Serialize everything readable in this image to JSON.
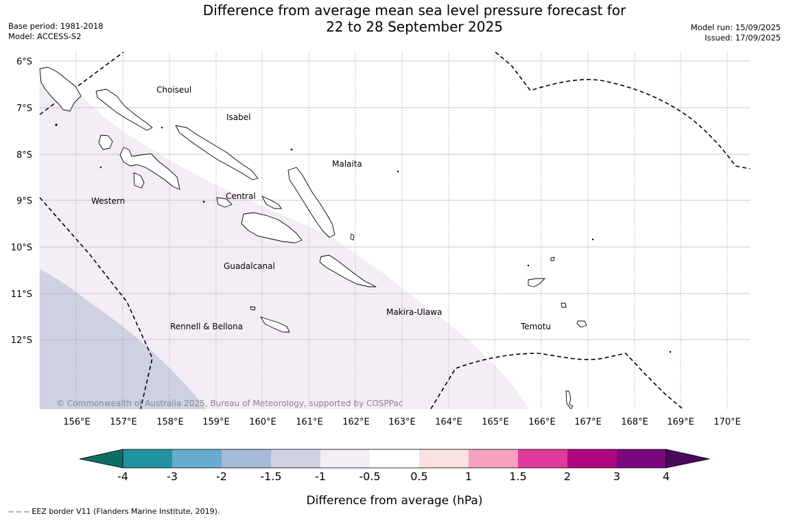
{
  "header": {
    "title_line1": "Difference from average mean sea level pressure forecast for",
    "title_line2": "22 to 28 September 2025",
    "base_period": "Base period: 1981-2018",
    "model": "Model: ACCESS-S2",
    "model_run": "Model run: 15/09/2025",
    "issued": "Issued: 17/09/2025"
  },
  "map": {
    "lat_ticks": [
      "6°S",
      "7°S",
      "8°S",
      "9°S",
      "10°S",
      "11°S",
      "12°S"
    ],
    "lon_ticks": [
      "156°E",
      "157°E",
      "158°E",
      "159°E",
      "160°E",
      "161°E",
      "162°E",
      "163°E",
      "164°E",
      "165°E",
      "166°E",
      "167°E",
      "168°E",
      "169°E",
      "170°E"
    ],
    "province_labels": [
      "Choiseul",
      "Isabel",
      "Malaita",
      "Western",
      "Central",
      "Guadalcanal",
      "Makira-Ulawa",
      "Rennell & Bellona",
      "Temotu"
    ],
    "copyright": "© Commonwealth of Australia 2025, Bureau of Meteorology, supported by COSPPac",
    "fill_colors": {
      "light_lavender": "#f3edf6",
      "grey_blue": "#cfd1e3"
    }
  },
  "colorbar": {
    "tick_labels": [
      "-4",
      "-3",
      "-2",
      "-1.5",
      "-1",
      "-0.5",
      "0.5",
      "1",
      "1.5",
      "2",
      "3",
      "4"
    ],
    "colors": [
      "#0b6e63",
      "#2193a0",
      "#68aad0",
      "#a7b9d8",
      "#cfd1e3",
      "#f3edf6",
      "#ffffff",
      "#fde0e0",
      "#f7a0c0",
      "#e03a9c",
      "#b0067f",
      "#7a0680",
      "#4a0a5a"
    ],
    "label": "Difference from average (hPa)"
  },
  "footer": {
    "legend_note": "--  --  -- EEZ border V11 (Flanders Marine Institute, 2019)."
  }
}
